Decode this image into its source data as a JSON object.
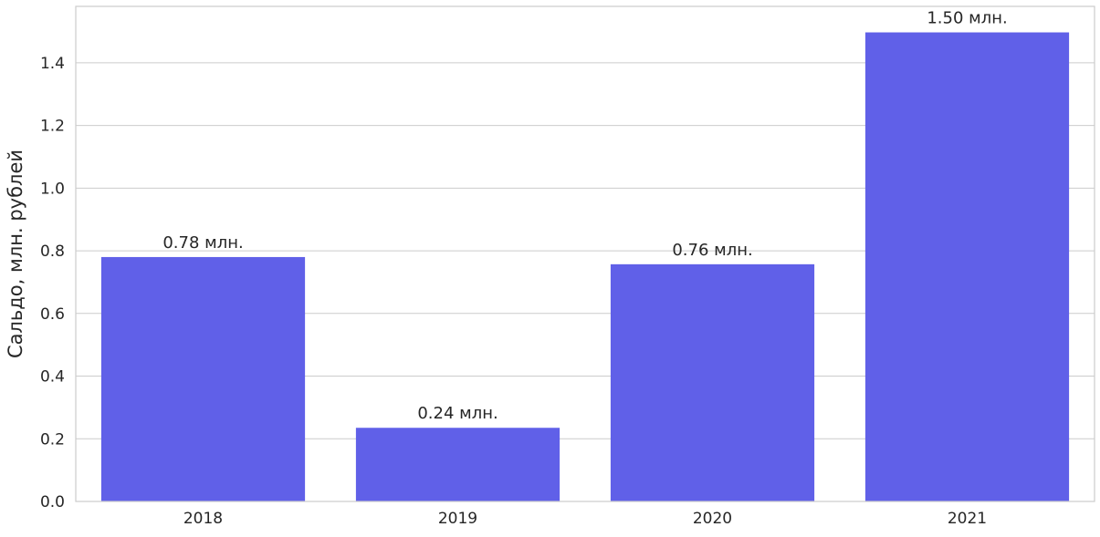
{
  "chart_data": {
    "type": "bar",
    "title": "",
    "xlabel": "",
    "ylabel": "Сальдо, млн. рублей",
    "categories": [
      "2018",
      "2019",
      "2020",
      "2021"
    ],
    "values": [
      0.78,
      0.235,
      0.757,
      1.497
    ],
    "data_labels": [
      "0.78 млн.",
      "0.24 млн.",
      "0.76 млн.",
      "1.50 млн."
    ],
    "ylim": [
      0,
      1.58
    ],
    "yticks": [
      0.0,
      0.2,
      0.4,
      0.6,
      0.8,
      1.0,
      1.2,
      1.4
    ],
    "ytick_labels": [
      "0.0",
      "0.2",
      "0.4",
      "0.6",
      "0.8",
      "1.0",
      "1.2",
      "1.4"
    ],
    "grid": "horizontal",
    "legend": "none",
    "colors": {
      "bar": "#6060e8",
      "grid": "#cccccc",
      "frame": "#cccccc",
      "text": "#262626"
    }
  }
}
